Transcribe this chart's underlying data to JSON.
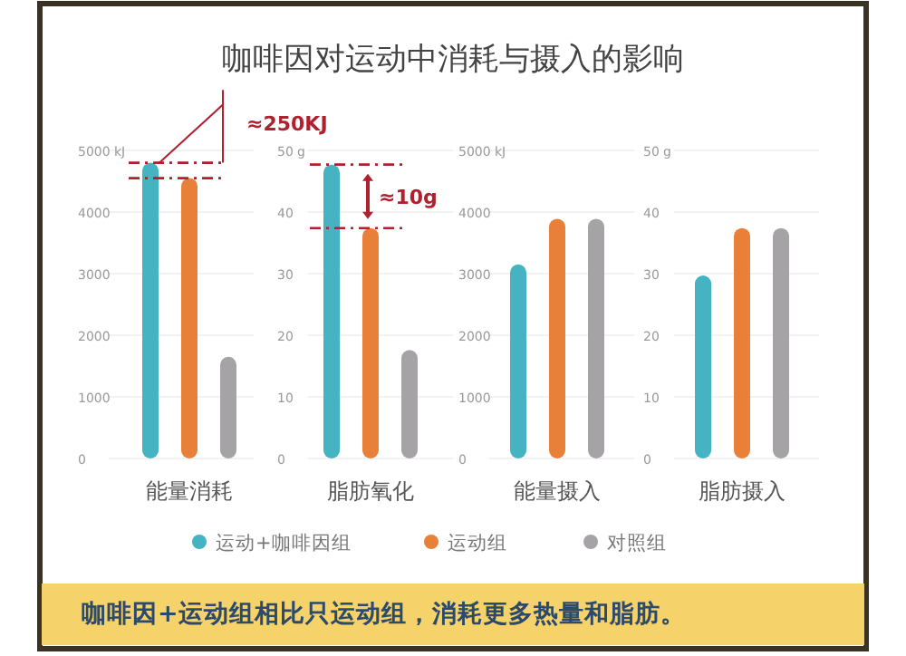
{
  "chart_data": [
    {
      "type": "bar",
      "title": "咖啡因对运动中消耗与摄入的影响",
      "categories": [
        "能量消耗"
      ],
      "ylabel": "kJ",
      "ylim": [
        0,
        5000
      ],
      "yticks": [
        0,
        1000,
        2000,
        3000,
        4000,
        5000
      ],
      "grid": "y",
      "legend": "bottom",
      "series": [
        {
          "name": "运动+咖啡因组",
          "color": "#45b3c1",
          "values": [
            4800
          ]
        },
        {
          "name": "运动组",
          "color": "#e8803a",
          "values": [
            4550
          ]
        },
        {
          "name": "对照组",
          "color": "#a5a3a6",
          "values": [
            1650
          ]
        }
      ],
      "ref_lines": [
        {
          "axis": "y",
          "value": 4800,
          "color": "#b0202e",
          "line_style": "dashed"
        },
        {
          "axis": "y",
          "value": 4550,
          "color": "#b0202e",
          "line_style": "dashed"
        }
      ],
      "annotations": [
        "≈250KJ",
        "咖啡因+运动组相比只运动组，消耗更多热量和脂肪。"
      ]
    },
    {
      "type": "bar",
      "categories": [
        "脂肪氧化"
      ],
      "ylabel": "g",
      "ylim": [
        0,
        50
      ],
      "yticks": [
        0,
        10,
        20,
        30,
        40,
        50
      ],
      "grid": "y",
      "series": [
        {
          "color": "#45b3c1",
          "values": [
            47.7
          ]
        },
        {
          "color": "#e8803a",
          "values": [
            37.4
          ]
        },
        {
          "color": "#a5a3a6",
          "values": [
            17.6
          ]
        }
      ],
      "ref_lines": [
        {
          "axis": "y",
          "value": 47.7,
          "color": "#b0202e",
          "line_style": "dashed"
        },
        {
          "axis": "y",
          "value": 37.4,
          "color": "#b0202e",
          "line_style": "dashed"
        }
      ],
      "annotations": [
        "≈10g"
      ]
    },
    {
      "type": "bar",
      "categories": [
        "能量摄入"
      ],
      "ylabel": "kJ",
      "ylim": [
        0,
        5000
      ],
      "yticks": [
        0,
        1000,
        2000,
        3000,
        4000,
        5000
      ],
      "grid": "y",
      "series": [
        {
          "color": "#45b3c1",
          "values": [
            3150
          ]
        },
        {
          "color": "#e8803a",
          "values": [
            3890
          ]
        },
        {
          "color": "#a5a3a6",
          "values": [
            3890
          ]
        }
      ]
    },
    {
      "type": "bar",
      "categories": [
        "脂肪摄入"
      ],
      "ylabel": "g",
      "ylim": [
        0,
        50
      ],
      "yticks": [
        0,
        10,
        20,
        30,
        40,
        50
      ],
      "grid": "y",
      "series": [
        {
          "color": "#45b3c1",
          "values": [
            29.7
          ]
        },
        {
          "color": "#e8803a",
          "values": [
            37.4
          ]
        },
        {
          "color": "#a5a3a6",
          "values": [
            37.4
          ]
        }
      ]
    }
  ]
}
